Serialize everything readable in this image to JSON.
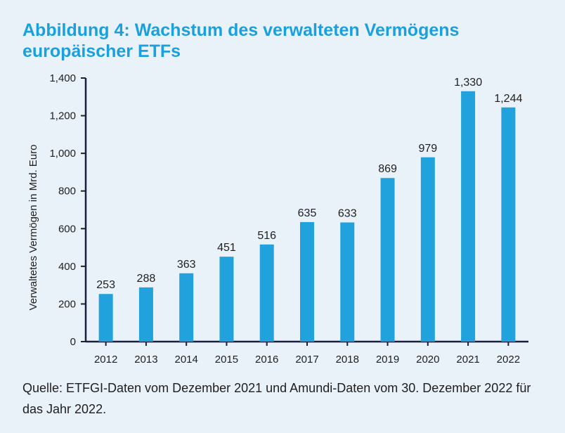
{
  "title": "Abbildung 4: Wachstum des verwalteten Vermögens europäischer ETFs",
  "source": "Quelle: ETFGI-Daten vom Dezember 2021 und Amundi-Daten vom 30. Dezember 2022 für das Jahr 2022.",
  "colors": {
    "bar": "#22a2dc",
    "title": "#1aa0dc",
    "axis": "#1a1f3c",
    "background": "#eaf2f9"
  },
  "chart_data": {
    "type": "bar",
    "title": "Abbildung 4: Wachstum des verwalteten Vermögens europäischer ETFs",
    "xlabel": "",
    "ylabel": "Verwaltetes Vermögen in Mrd. Euro",
    "categories": [
      "2012",
      "2013",
      "2014",
      "2015",
      "2016",
      "2017",
      "2018",
      "2019",
      "2020",
      "2021",
      "2022"
    ],
    "values": [
      253,
      288,
      363,
      451,
      516,
      635,
      633,
      869,
      979,
      1330,
      1244
    ],
    "value_labels": [
      "253",
      "288",
      "363",
      "451",
      "516",
      "635",
      "633",
      "869",
      "979",
      "1,330",
      "1,244"
    ],
    "ylim": [
      0,
      1400
    ],
    "yticks": [
      0,
      200,
      400,
      600,
      800,
      1000,
      1200,
      1400
    ],
    "ytick_labels": [
      "0",
      "200",
      "400",
      "600",
      "800",
      "1,000",
      "1,200",
      "1,400"
    ],
    "grid": false,
    "legend": "none"
  }
}
